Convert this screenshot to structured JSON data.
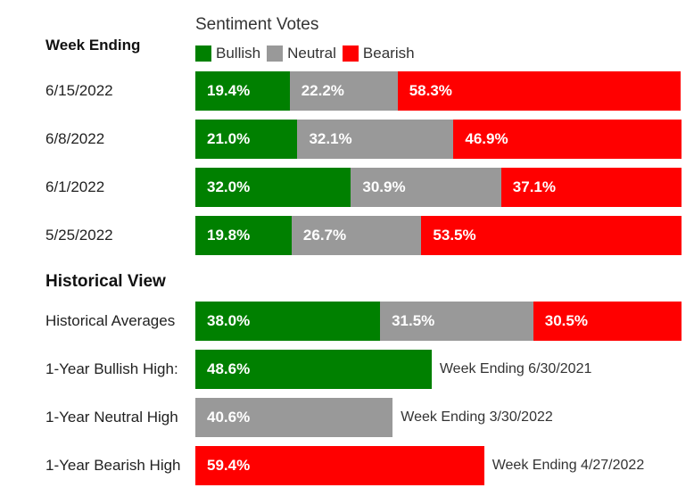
{
  "legend": {
    "title": "Sentiment Votes",
    "items": [
      {
        "label": "Bullish",
        "color": "#008000"
      },
      {
        "label": "Neutral",
        "color": "#999999"
      },
      {
        "label": "Bearish",
        "color": "#ff0000"
      }
    ]
  },
  "week_section_title": "Week Ending",
  "historical_section_title": "Historical View",
  "chart_data": {
    "type": "bar",
    "stacked": true,
    "orientation": "horizontal",
    "xlim": [
      0,
      100
    ],
    "series_names": [
      "Bullish",
      "Neutral",
      "Bearish"
    ],
    "colors": {
      "Bullish": "#008000",
      "Neutral": "#999999",
      "Bearish": "#ff0000"
    },
    "weekly": [
      {
        "label": "6/15/2022",
        "values": [
          19.4,
          22.2,
          58.3
        ],
        "texts": [
          "19.4%",
          "22.2%",
          "58.3%"
        ]
      },
      {
        "label": "6/8/2022",
        "values": [
          21.0,
          32.1,
          46.9
        ],
        "texts": [
          "21.0%",
          "32.1%",
          "46.9%"
        ]
      },
      {
        "label": "6/1/2022",
        "values": [
          32.0,
          30.9,
          37.1
        ],
        "texts": [
          "32.0%",
          "30.9%",
          "37.1%"
        ]
      },
      {
        "label": "5/25/2022",
        "values": [
          19.8,
          26.7,
          53.5
        ],
        "texts": [
          "19.8%",
          "26.7%",
          "53.5%"
        ]
      }
    ],
    "historical": [
      {
        "label": "Historical Averages",
        "values": [
          38.0,
          31.5,
          30.5
        ],
        "texts": [
          "38.0%",
          "31.5%",
          "30.5%"
        ],
        "note": ""
      },
      {
        "label": "1-Year Bullish High:",
        "series": "Bullish",
        "value": 48.6,
        "text": "48.6%",
        "note": "Week Ending 6/30/2021"
      },
      {
        "label": "1-Year Neutral High",
        "series": "Neutral",
        "value": 40.6,
        "text": "40.6%",
        "note": "Week Ending 3/30/2022"
      },
      {
        "label": "1-Year Bearish High",
        "series": "Bearish",
        "value": 59.4,
        "text": "59.4%",
        "note": "Week Ending 4/27/2022"
      }
    ]
  }
}
